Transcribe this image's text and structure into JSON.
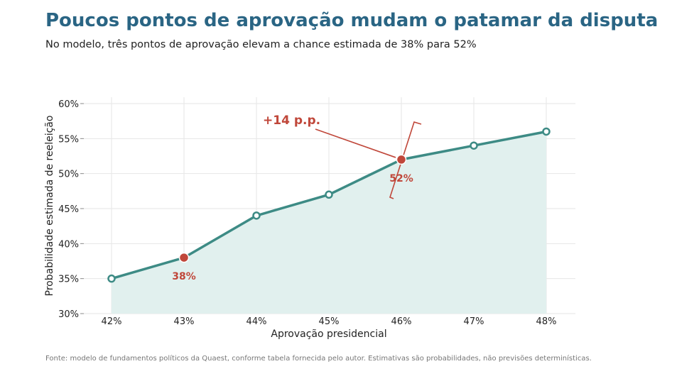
{
  "header": {
    "title": "Poucos pontos de aprovação mudam o patamar da disputa",
    "subtitle": "No modelo, três pontos de aprovação elevam a chance estimada de 38% para 52%"
  },
  "source": "Fonte: modelo de fundamentos políticos da Quaest, conforme tabela fornecida pelo autor. Estimativas são probabilidades, não previsões determinísticas.",
  "colors": {
    "title": "#2a6584",
    "line": "#3d8b85",
    "area": "#e1f0ee",
    "highlight": "#c0473a",
    "grid": "#e6e6e6"
  },
  "chart_data": {
    "type": "area",
    "x": [
      42,
      43,
      44,
      45,
      46,
      47,
      48
    ],
    "x_tick_labels": [
      "42%",
      "43%",
      "44%",
      "45%",
      "46%",
      "47%",
      "48%"
    ],
    "y": [
      35,
      38,
      44,
      47,
      52,
      54,
      56
    ],
    "ylim": [
      30,
      60
    ],
    "y_ticks": [
      30,
      35,
      40,
      45,
      50,
      55,
      60
    ],
    "y_tick_labels": [
      "30%",
      "35%",
      "40%",
      "45%",
      "50%",
      "55%",
      "60%"
    ],
    "xlabel": "Aprovação presidencial",
    "ylabel": "Probabilidade estimada de reeleição",
    "grid": true,
    "highlights": [
      {
        "x": 43,
        "y": 38,
        "label": "38%"
      },
      {
        "x": 46,
        "y": 52,
        "label": "52%"
      }
    ],
    "annotation": {
      "text": "+14 p.p.",
      "target_x": 46,
      "target_y": 52
    }
  }
}
